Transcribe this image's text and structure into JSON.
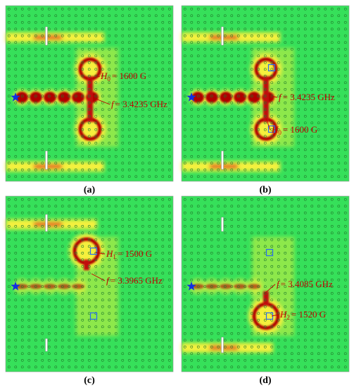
{
  "panels": [
    {
      "label": "(a)",
      "annotations": [
        {
          "symbol": "H",
          "subscript": "0",
          "text": "= 1600 G"
        },
        {
          "symbol": "f",
          "text": "= 3.4235 GHz"
        }
      ]
    },
    {
      "label": "(b)",
      "annotations": [
        {
          "symbol": "f",
          "text": "= 3.4235 GHz"
        },
        {
          "symbol": "H",
          "subscript": "0",
          "text": "= 1600 G"
        }
      ]
    },
    {
      "label": "(c)",
      "annotations": [
        {
          "symbol": "H",
          "subscript": "1",
          "text": "= 1500 G"
        },
        {
          "symbol": "f",
          "text": "= 3.3965 GHz"
        }
      ]
    },
    {
      "label": "(d)",
      "annotations": [
        {
          "symbol": "f",
          "text": "= 3.4085 GHz"
        },
        {
          "symbol": "H",
          "subscript": "2",
          "text": "= 1520 G"
        }
      ]
    }
  ]
}
